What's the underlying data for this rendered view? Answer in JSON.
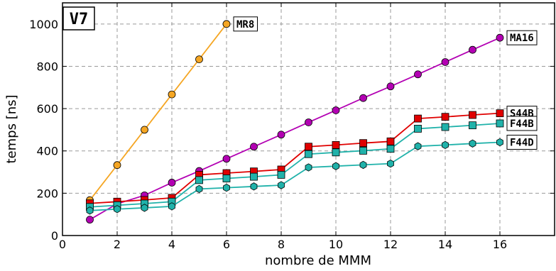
{
  "chart_data": {
    "type": "line",
    "panel_label": "V7",
    "xlabel": "nombre de MMM",
    "ylabel": "temps [ns]",
    "xlim": [
      0,
      18
    ],
    "ylim": [
      0,
      1100
    ],
    "xticks": [
      0,
      2,
      4,
      6,
      8,
      10,
      12,
      14,
      16
    ],
    "yticks": [
      0,
      200,
      400,
      600,
      800,
      1000
    ],
    "grid": true,
    "series": [
      {
        "name": "MR8",
        "color": "#f5a623",
        "marker": "circle",
        "x": [
          1,
          2,
          3,
          4,
          5,
          6
        ],
        "y": [
          167,
          333,
          500,
          667,
          833,
          1000
        ]
      },
      {
        "name": "MA16",
        "color": "#b300b3",
        "marker": "circle",
        "x": [
          1,
          2,
          3,
          4,
          5,
          6,
          7,
          8,
          9,
          10,
          11,
          12,
          13,
          14,
          15,
          16
        ],
        "y": [
          75,
          150,
          190,
          250,
          305,
          363,
          420,
          477,
          535,
          592,
          650,
          705,
          762,
          820,
          878,
          935
        ]
      },
      {
        "name": "S44B",
        "color": "#e00000",
        "marker": "square",
        "x": [
          1,
          2,
          3,
          4,
          5,
          6,
          7,
          8,
          9,
          10,
          11,
          12,
          13,
          14,
          15,
          16
        ],
        "y": [
          152,
          160,
          168,
          178,
          287,
          295,
          303,
          312,
          420,
          428,
          437,
          445,
          553,
          561,
          570,
          578
        ]
      },
      {
        "name": "F44B",
        "color": "#20b2aa",
        "marker": "square",
        "x": [
          1,
          2,
          3,
          4,
          5,
          6,
          7,
          8,
          9,
          10,
          11,
          12,
          13,
          14,
          15,
          16
        ],
        "y": [
          135,
          143,
          151,
          160,
          262,
          270,
          278,
          287,
          385,
          393,
          401,
          410,
          505,
          513,
          521,
          530
        ]
      },
      {
        "name": "F44D",
        "color": "#20b2aa",
        "marker": "hexagon",
        "x": [
          1,
          2,
          3,
          4,
          5,
          6,
          7,
          8,
          9,
          10,
          11,
          12,
          13,
          14,
          15,
          16
        ],
        "y": [
          118,
          125,
          131,
          138,
          220,
          226,
          232,
          238,
          322,
          328,
          334,
          340,
          422,
          428,
          435,
          441
        ]
      }
    ]
  }
}
